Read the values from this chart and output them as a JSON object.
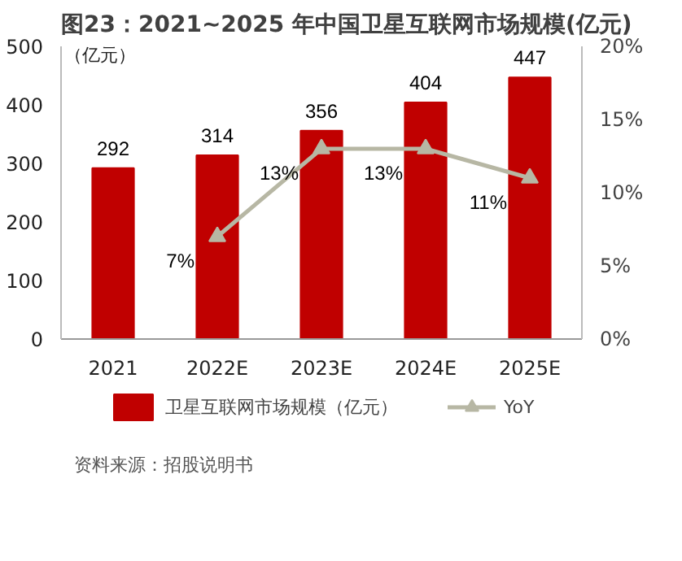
{
  "chart_data": {
    "type": "bar",
    "title": "图23：2021~2025 年中国卫星互联网市场规模(亿元)",
    "ylabel": "（亿元）",
    "categories": [
      "2021",
      "2022E",
      "2023E",
      "2024E",
      "2025E"
    ],
    "series": [
      {
        "name": "卫星互联网市场规模（亿元）",
        "color": "#c00000",
        "values": [
          292,
          314,
          356,
          404,
          447
        ],
        "value_labels": [
          "292",
          "314",
          "356",
          "404",
          "447"
        ]
      },
      {
        "name": "YoY",
        "type": "line",
        "axis": "y2",
        "color": "#b7b7a4",
        "values": [
          null,
          7,
          13,
          13,
          11
        ],
        "value_labels": [
          null,
          "7%",
          "13%",
          "13%",
          "11%"
        ]
      }
    ],
    "ylim": [
      0,
      500
    ],
    "yticks": [
      0,
      100,
      200,
      300,
      400,
      500
    ],
    "y2lim": [
      0,
      20
    ],
    "y2ticks": [
      {
        "value": 0,
        "label": "0%"
      },
      {
        "value": 5,
        "label": "5%"
      },
      {
        "value": 10,
        "label": "10%"
      },
      {
        "value": 15,
        "label": "15%"
      },
      {
        "value": 20,
        "label": "20%"
      }
    ],
    "marker": "triangle",
    "grid": false,
    "legend": "bottom",
    "annotations": [
      "资料来源：招股说明书"
    ]
  }
}
